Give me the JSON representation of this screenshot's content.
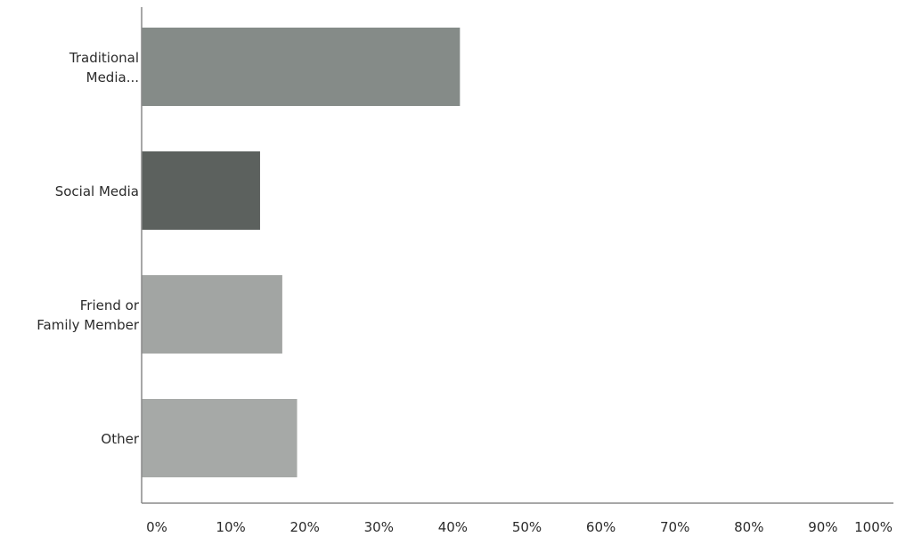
{
  "chart_data": {
    "type": "bar",
    "orientation": "horizontal",
    "title": "",
    "xlabel": "",
    "ylabel": "",
    "categories": [
      [
        "Traditional",
        "Media..."
      ],
      [
        "Social Media"
      ],
      [
        "Friend or",
        "Family Member"
      ],
      [
        "Other"
      ]
    ],
    "values": [
      43,
      16,
      19,
      21
    ],
    "xlim": [
      0,
      100
    ],
    "x_ticks": [
      "0%",
      "10%",
      "20%",
      "30%",
      "40%",
      "50%",
      "60%",
      "70%",
      "80%",
      "90%",
      "100%"
    ],
    "grid": false,
    "legend": "none",
    "colors": [
      "#858b88",
      "#5c615e",
      "#a2a5a3",
      "#a6a9a7"
    ],
    "axis_color": "#8a8a8a"
  }
}
